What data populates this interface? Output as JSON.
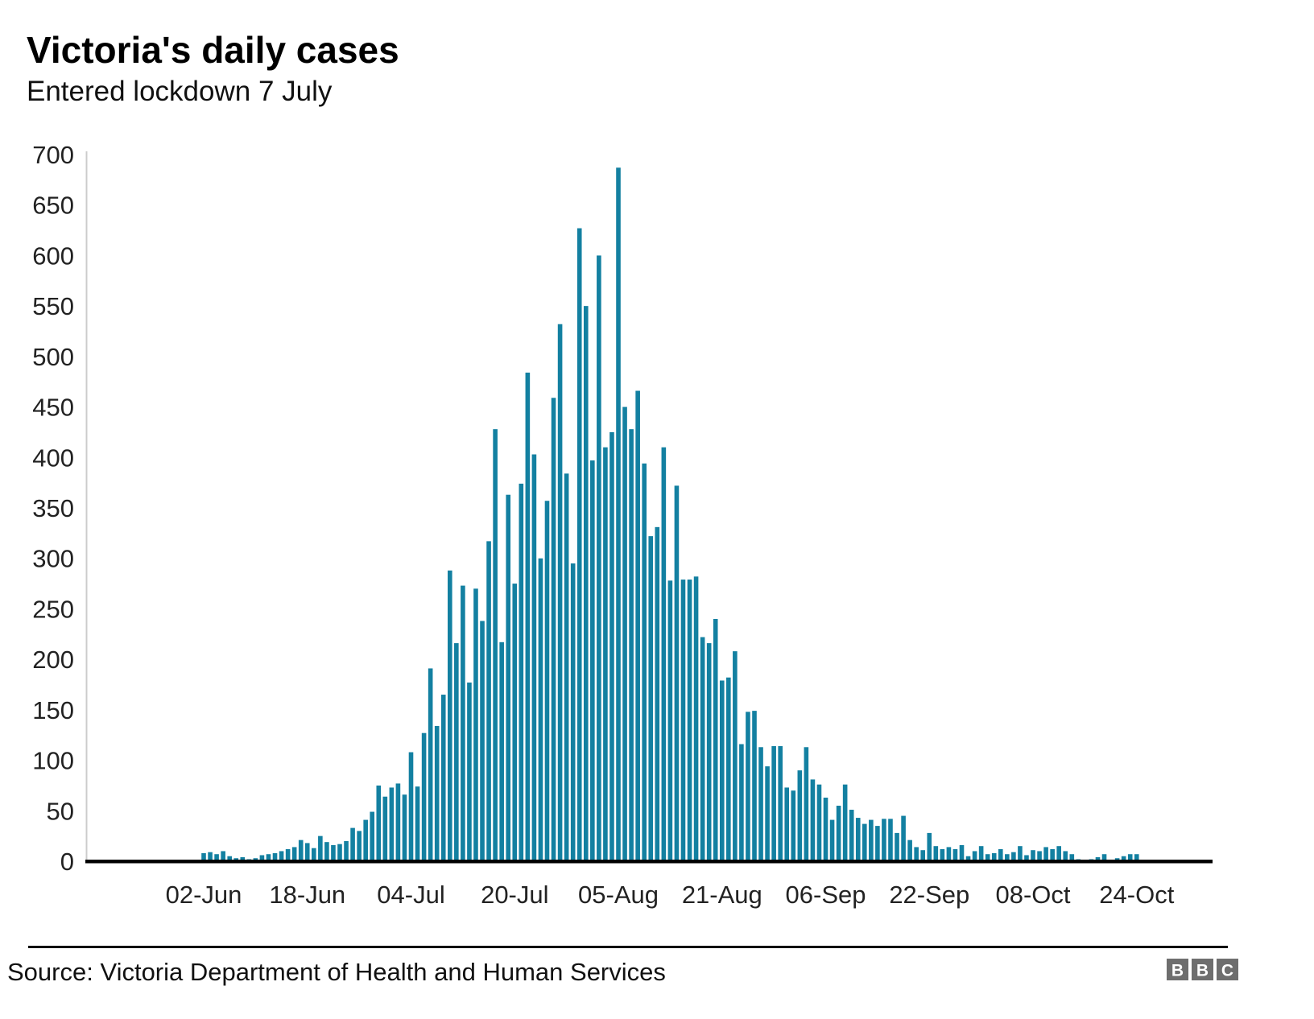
{
  "header": {
    "title": "Victoria's daily cases",
    "subtitle": "Entered lockdown 7 July"
  },
  "footer": {
    "source": "Source: Victoria Department of Health and Human Services",
    "logo_letters": [
      "B",
      "B",
      "C"
    ]
  },
  "colors": {
    "bar": "#1380A1",
    "axis": "#000000",
    "y_axis_line": "#cccccc",
    "tick_text": "#222222",
    "logo_bg": "#6e6e6e"
  },
  "chart_data": {
    "type": "bar",
    "title": "Victoria's daily cases",
    "subtitle": "Entered lockdown 7 July",
    "xlabel": "",
    "ylabel": "",
    "ylim": [
      0,
      700
    ],
    "yticks": [
      0,
      50,
      100,
      150,
      200,
      250,
      300,
      350,
      400,
      450,
      500,
      550,
      600,
      650,
      700
    ],
    "grid": "off",
    "legend_position": "none",
    "xtick_labels": [
      "02-Jun",
      "18-Jun",
      "04-Jul",
      "20-Jul",
      "05-Aug",
      "21-Aug",
      "06-Sep",
      "22-Sep",
      "08-Oct",
      "24-Oct"
    ],
    "xtick_indices": [
      0,
      16,
      32,
      48,
      64,
      80,
      96,
      112,
      128,
      144
    ],
    "dates": [
      "02-Jun",
      "03-Jun",
      "04-Jun",
      "05-Jun",
      "06-Jun",
      "07-Jun",
      "08-Jun",
      "09-Jun",
      "10-Jun",
      "11-Jun",
      "12-Jun",
      "13-Jun",
      "14-Jun",
      "15-Jun",
      "16-Jun",
      "17-Jun",
      "18-Jun",
      "19-Jun",
      "20-Jun",
      "21-Jun",
      "22-Jun",
      "23-Jun",
      "24-Jun",
      "25-Jun",
      "26-Jun",
      "27-Jun",
      "28-Jun",
      "29-Jun",
      "30-Jun",
      "01-Jul",
      "02-Jul",
      "03-Jul",
      "04-Jul",
      "05-Jul",
      "06-Jul",
      "07-Jul",
      "08-Jul",
      "09-Jul",
      "10-Jul",
      "11-Jul",
      "12-Jul",
      "13-Jul",
      "14-Jul",
      "15-Jul",
      "16-Jul",
      "17-Jul",
      "18-Jul",
      "19-Jul",
      "20-Jul",
      "21-Jul",
      "22-Jul",
      "23-Jul",
      "24-Jul",
      "25-Jul",
      "26-Jul",
      "27-Jul",
      "28-Jul",
      "29-Jul",
      "30-Jul",
      "31-Jul",
      "01-Aug",
      "02-Aug",
      "03-Aug",
      "04-Aug",
      "05-Aug",
      "06-Aug",
      "07-Aug",
      "08-Aug",
      "09-Aug",
      "10-Aug",
      "11-Aug",
      "12-Aug",
      "13-Aug",
      "14-Aug",
      "15-Aug",
      "16-Aug",
      "17-Aug",
      "18-Aug",
      "19-Aug",
      "20-Aug",
      "21-Aug",
      "22-Aug",
      "23-Aug",
      "24-Aug",
      "25-Aug",
      "26-Aug",
      "27-Aug",
      "28-Aug",
      "29-Aug",
      "30-Aug",
      "31-Aug",
      "01-Sep",
      "02-Sep",
      "03-Sep",
      "04-Sep",
      "05-Sep",
      "06-Sep",
      "07-Sep",
      "08-Sep",
      "09-Sep",
      "10-Sep",
      "11-Sep",
      "12-Sep",
      "13-Sep",
      "14-Sep",
      "15-Sep",
      "16-Sep",
      "17-Sep",
      "18-Sep",
      "19-Sep",
      "20-Sep",
      "21-Sep",
      "22-Sep",
      "23-Sep",
      "24-Sep",
      "25-Sep",
      "26-Sep",
      "27-Sep",
      "28-Sep",
      "29-Sep",
      "30-Sep",
      "01-Oct",
      "02-Oct",
      "03-Oct",
      "04-Oct",
      "05-Oct",
      "06-Oct",
      "07-Oct",
      "08-Oct",
      "09-Oct",
      "10-Oct",
      "11-Oct",
      "12-Oct",
      "13-Oct",
      "14-Oct",
      "15-Oct",
      "16-Oct",
      "17-Oct",
      "18-Oct",
      "19-Oct",
      "20-Oct",
      "21-Oct",
      "22-Oct",
      "23-Oct",
      "24-Oct",
      "25-Oct",
      "26-Oct"
    ],
    "values": [
      8,
      9,
      7,
      10,
      5,
      3,
      4,
      2,
      3,
      6,
      7,
      8,
      10,
      12,
      14,
      21,
      18,
      13,
      25,
      19,
      16,
      17,
      20,
      33,
      30,
      41,
      49,
      75,
      64,
      73,
      77,
      66,
      108,
      74,
      127,
      191,
      134,
      165,
      288,
      216,
      273,
      177,
      270,
      238,
      317,
      428,
      217,
      363,
      275,
      374,
      484,
      403,
      300,
      357,
      459,
      532,
      384,
      295,
      627,
      550,
      397,
      600,
      410,
      425,
      687,
      450,
      428,
      466,
      394,
      322,
      331,
      410,
      278,
      372,
      279,
      279,
      282,
      222,
      216,
      240,
      179,
      182,
      208,
      116,
      148,
      149,
      113,
      94,
      114,
      114,
      73,
      70,
      90,
      113,
      81,
      76,
      63,
      41,
      55,
      76,
      51,
      43,
      37,
      41,
      35,
      42,
      42,
      28,
      45,
      21,
      14,
      11,
      28,
      15,
      12,
      14,
      12,
      16,
      5,
      10,
      15,
      7,
      8,
      12,
      7,
      9,
      15,
      6,
      11,
      10,
      14,
      12,
      15,
      10,
      7,
      2,
      1,
      2,
      4,
      7,
      1,
      3,
      5,
      7,
      7,
      0,
      0
    ]
  }
}
